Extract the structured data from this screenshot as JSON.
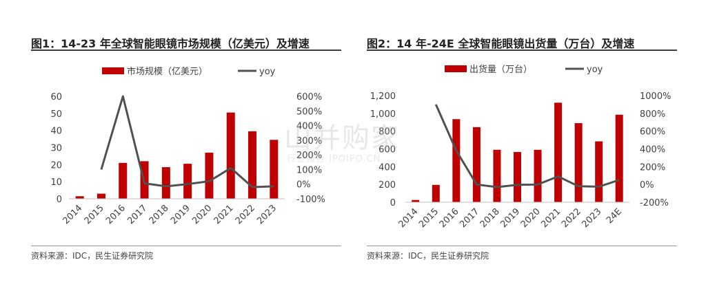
{
  "charts": [
    {
      "title": "图1：14-23 年全球智能眼镜市场规模（亿美元）及增速",
      "source": "资料来源：IDC，民生证券研究院"
    },
    {
      "title": "图2：14 年-24E 全球智能眼镜出货量（万台）及增速",
      "source": "资料来源：IDC，民生证券研究院"
    }
  ],
  "chart_data": [
    {
      "type": "bar",
      "title": "图1：14-23 年全球智能眼镜市场规模（亿美元）及增速",
      "categories": [
        "2014",
        "2015",
        "2016",
        "2017",
        "2018",
        "2019",
        "2020",
        "2021",
        "2022",
        "2023"
      ],
      "series": [
        {
          "name": "市场规模（亿美元）",
          "type": "bar",
          "axis": "left",
          "color": "#c00000",
          "values": [
            1.5,
            3,
            21,
            22,
            18.5,
            20.5,
            27,
            50.5,
            39.5,
            34.5
          ]
        },
        {
          "name": "yoy",
          "type": "line",
          "axis": "right",
          "color": "#505050",
          "values": [
            null,
            100,
            600,
            5,
            -15,
            0,
            20,
            110,
            -20,
            -15
          ]
        }
      ],
      "y_left": {
        "min": 0,
        "max": 60,
        "ticks": [
          "0",
          "10",
          "20",
          "30",
          "40",
          "50",
          "60"
        ]
      },
      "y_right": {
        "min": -100,
        "max": 600,
        "ticks": [
          "-100%",
          "0%",
          "100%",
          "200%",
          "300%",
          "400%",
          "500%",
          "600%"
        ]
      },
      "legend_position": "top-center",
      "grid": false
    },
    {
      "type": "bar",
      "title": "图2：14 年-24E 全球智能眼镜出货量（万台）及增速",
      "categories": [
        "2014",
        "2015",
        "2016",
        "2017",
        "2018",
        "2019",
        "2020",
        "2021",
        "2022",
        "2023",
        "24E"
      ],
      "series": [
        {
          "name": "出货量（万台）",
          "type": "bar",
          "axis": "left",
          "color": "#c00000",
          "values": [
            25,
            195,
            935,
            845,
            590,
            565,
            590,
            1120,
            890,
            685,
            985
          ]
        },
        {
          "name": "yoy",
          "type": "line",
          "axis": "right",
          "color": "#505050",
          "values": [
            null,
            900,
            380,
            0,
            -30,
            -5,
            0,
            90,
            -20,
            -25,
            50
          ]
        }
      ],
      "y_left": {
        "min": 0,
        "max": 1200,
        "ticks": [
          "0",
          "200",
          "400",
          "600",
          "800",
          "1,000",
          "1,200"
        ]
      },
      "y_right": {
        "min": -200,
        "max": 1000,
        "ticks": [
          "-200%",
          "0%",
          "200%",
          "400%",
          "600%",
          "800%",
          "1000%"
        ]
      },
      "legend_position": "top-center",
      "grid": false
    }
  ],
  "watermark": {
    "main": "山并购家",
    "sub": "行业报告 IPOIPO.CN"
  }
}
